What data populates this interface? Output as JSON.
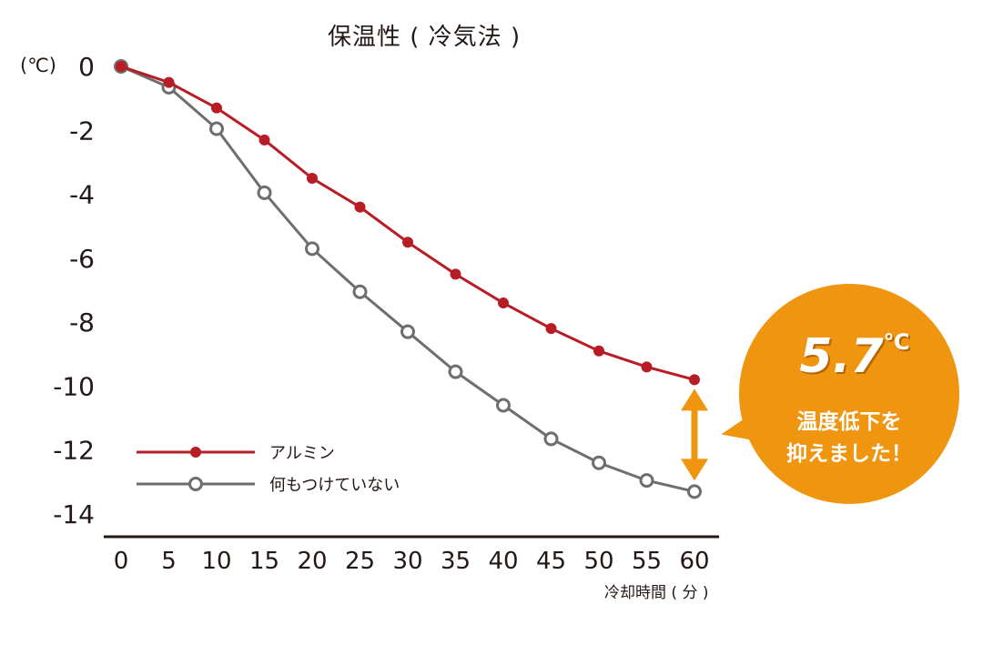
{
  "chart_data": {
    "type": "line",
    "title": "保温性 ( 冷気法 )",
    "ylabel": "(℃)",
    "xlabel": "冷却時間 ( 分 )",
    "x": [
      0,
      5,
      10,
      15,
      20,
      25,
      30,
      35,
      40,
      45,
      50,
      55,
      60
    ],
    "ylim": [
      -14,
      0
    ],
    "xlim": [
      0,
      60
    ],
    "yticks": [
      0,
      -2,
      -4,
      -6,
      -8,
      -10,
      -12,
      -14
    ],
    "xticks": [
      0,
      5,
      10,
      15,
      20,
      25,
      30,
      35,
      40,
      45,
      50,
      55,
      60
    ],
    "grid": false,
    "legend_position": "bottom-left",
    "series": [
      {
        "name": "アルミン",
        "color": "#b81c25",
        "marker": "filled-circle",
        "values": [
          0,
          -0.5,
          -1.3,
          -2.3,
          -3.5,
          -4.4,
          -5.5,
          -6.5,
          -7.4,
          -8.2,
          -8.9,
          -9.4,
          -9.8
        ]
      },
      {
        "name": "何もつけていない",
        "color": "#6e6e6e",
        "marker": "open-circle",
        "values": [
          0,
          -0.65,
          -1.95,
          -3.95,
          -5.7,
          -7.05,
          -8.3,
          -9.55,
          -10.6,
          -11.65,
          -12.4,
          -12.95,
          -13.3
        ]
      }
    ],
    "annotation": {
      "value": "5.7",
      "unit": "℃",
      "line1": "温度低下を",
      "line2": "抑えました！",
      "arrow_color": "#f0950f"
    }
  }
}
